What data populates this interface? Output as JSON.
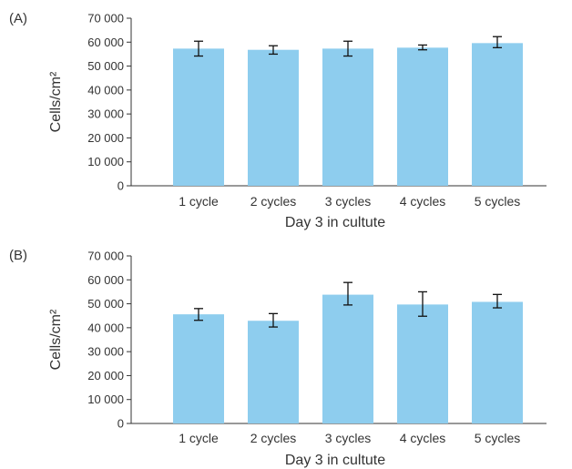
{
  "chart_data": [
    {
      "type": "bar",
      "panel_label": "(A)",
      "categories": [
        "1 cycle",
        "2 cycles",
        "3 cycles",
        "4 cycles",
        "5 cycles"
      ],
      "values": [
        57300,
        56800,
        57300,
        57700,
        59600
      ],
      "error_low": [
        54200,
        55000,
        54200,
        56800,
        57700
      ],
      "error_high": [
        60400,
        58500,
        60400,
        58800,
        62300
      ],
      "xlabel": "Day 3 in cultute",
      "ylabel": "Cells/cm²",
      "ylim": [
        0,
        70000
      ],
      "yticks": [
        "0",
        "10 000",
        "20 000",
        "30 000",
        "40 000",
        "50 000",
        "60 000",
        "70 000"
      ],
      "bar_color": "#8ECDEE",
      "grid": false
    },
    {
      "type": "bar",
      "panel_label": "(B)",
      "categories": [
        "1 cycle",
        "2 cycles",
        "3 cycles",
        "4 cycles",
        "5 cycles"
      ],
      "values": [
        45600,
        42900,
        53800,
        49700,
        50800
      ],
      "error_low": [
        43100,
        40300,
        49500,
        44800,
        48300
      ],
      "error_high": [
        48000,
        45900,
        58900,
        55000,
        53900
      ],
      "xlabel": "Day 3 in cultute",
      "ylabel": "Cells/cm²",
      "ylim": [
        0,
        70000
      ],
      "yticks": [
        "0",
        "10 000",
        "20 000",
        "30 000",
        "40 000",
        "50 000",
        "60 000",
        "70 000"
      ],
      "bar_color": "#8ECDEE",
      "grid": false
    }
  ]
}
